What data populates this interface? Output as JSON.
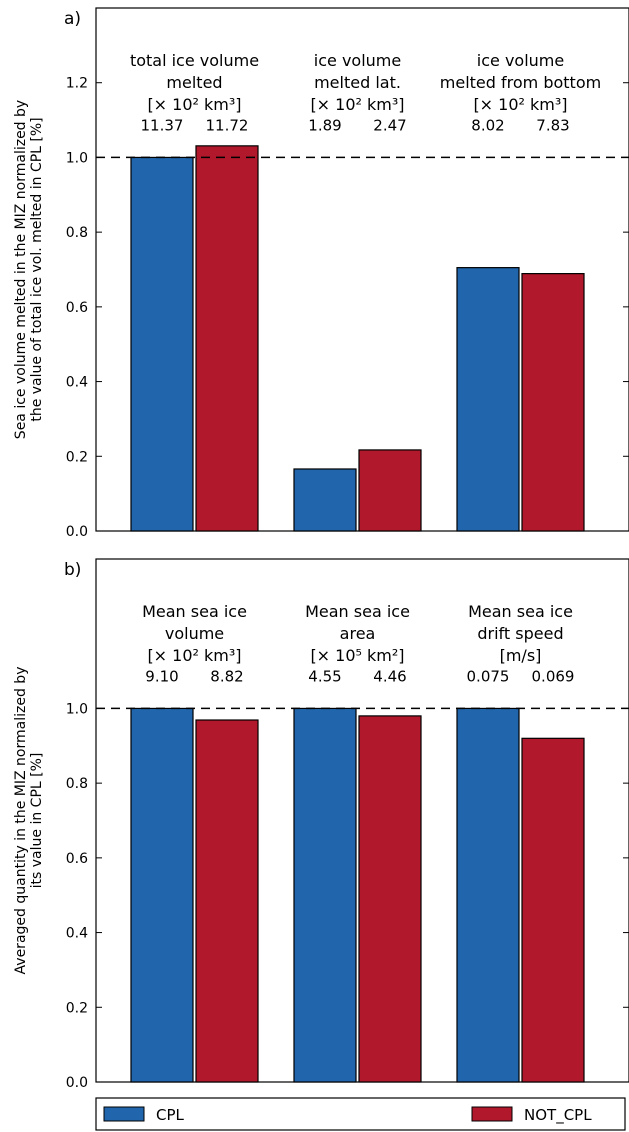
{
  "chart_data": [
    {
      "panel_label": "a)",
      "type": "bar",
      "ylabel_lines": [
        "Sea ice volume melted in the MIZ normalized by",
        "the value of total ice vol. melted in CPL [%]"
      ],
      "ylim": [
        0,
        1.4
      ],
      "yticks": [
        "0.0",
        "0.2",
        "0.4",
        "0.6",
        "0.8",
        "1.0",
        "1.2"
      ],
      "reference_line": 1.0,
      "groups": [
        {
          "title_lines": [
            "total ice volume",
            "melted",
            "[× 10² km³]"
          ],
          "values": [
            1.0,
            1.031
          ],
          "value_labels": [
            "11.37",
            "11.72"
          ]
        },
        {
          "title_lines": [
            "ice volume",
            "melted lat.",
            "[× 10² km³]"
          ],
          "values": [
            0.166,
            0.217
          ],
          "value_labels": [
            "1.89",
            "2.47"
          ]
        },
        {
          "title_lines": [
            "ice volume",
            "melted from bottom",
            "[× 10² km³]"
          ],
          "values": [
            0.705,
            0.689
          ],
          "value_labels": [
            "8.02",
            "7.83"
          ]
        }
      ]
    },
    {
      "panel_label": "b)",
      "type": "bar",
      "ylabel_lines": [
        "Averaged quantity in the MIZ normalized by",
        "its value in CPL [%]"
      ],
      "ylim": [
        0,
        1.4
      ],
      "yticks": [
        "0.0",
        "0.2",
        "0.4",
        "0.6",
        "0.8",
        "1.0"
      ],
      "reference_line": 1.0,
      "groups": [
        {
          "title_lines": [
            "Mean sea ice",
            "volume",
            "[× 10² km³]"
          ],
          "values": [
            1.0,
            0.969
          ],
          "value_labels": [
            "9.10",
            "8.82"
          ]
        },
        {
          "title_lines": [
            "Mean sea ice",
            "area",
            "[× 10⁵ km²]"
          ],
          "values": [
            1.0,
            0.98
          ],
          "value_labels": [
            "4.55",
            "4.46"
          ]
        },
        {
          "title_lines": [
            "Mean sea ice",
            "drift speed",
            "[m/s]"
          ],
          "values": [
            1.0,
            0.92
          ],
          "value_labels": [
            "0.075",
            "0.069"
          ]
        }
      ]
    }
  ],
  "legend": {
    "placement": "bottom",
    "entries": [
      {
        "name": "CPL",
        "color": "#2166ac"
      },
      {
        "name": "NOT_CPL",
        "color": "#b2182b"
      }
    ]
  }
}
